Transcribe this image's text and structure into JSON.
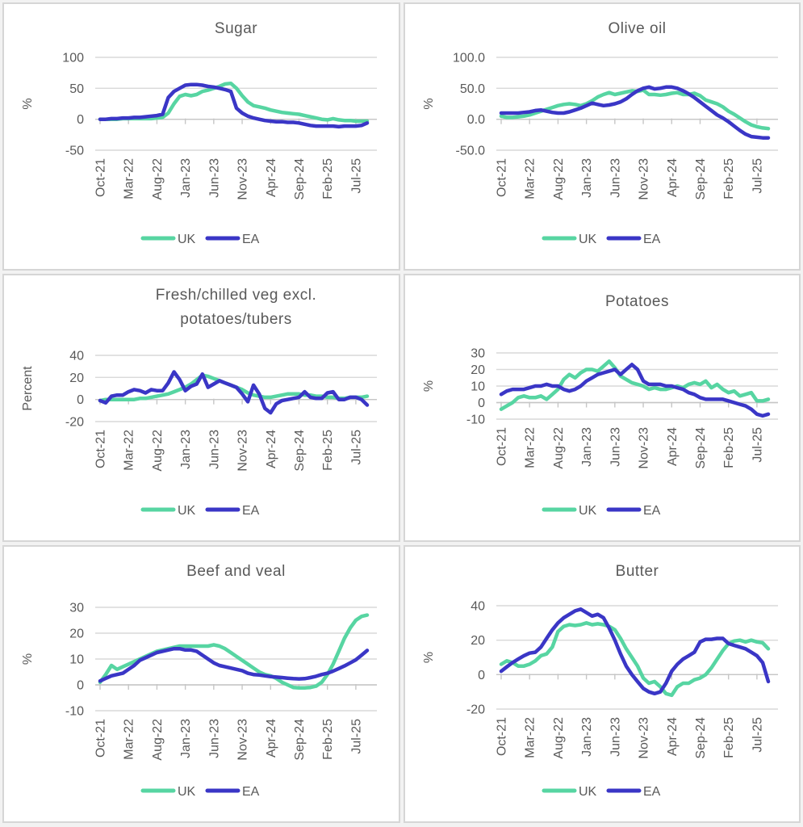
{
  "colors": {
    "uk": "#57d5a2",
    "ea": "#3a36c6",
    "grid": "#d9d9d9",
    "axis": "#c6c6c6",
    "text": "#595959",
    "panel_border": "#d6d6d6"
  },
  "legend": {
    "uk_label": "UK",
    "ea_label": "EA"
  },
  "x_tick_labels": [
    "Oct-21",
    "Mar-22",
    "Aug-22",
    "Jan-23",
    "Jun-23",
    "Nov-23",
    "Apr-24",
    "Sep-24",
    "Feb-25",
    "Jul-25"
  ],
  "x_categories": [
    "Oct-21",
    "Nov-21",
    "Dec-21",
    "Jan-22",
    "Feb-22",
    "Mar-22",
    "Apr-22",
    "May-22",
    "Jun-22",
    "Jul-22",
    "Aug-22",
    "Sep-22",
    "Oct-22",
    "Nov-22",
    "Dec-22",
    "Jan-23",
    "Feb-23",
    "Mar-23",
    "Apr-23",
    "May-23",
    "Jun-23",
    "Jul-23",
    "Aug-23",
    "Sep-23",
    "Oct-23",
    "Nov-23",
    "Dec-23",
    "Jan-24",
    "Feb-24",
    "Mar-24",
    "Apr-24",
    "May-24",
    "Jun-24",
    "Jul-24",
    "Aug-24",
    "Sep-24",
    "Oct-24",
    "Nov-24",
    "Dec-24",
    "Jan-25",
    "Feb-25",
    "Mar-25",
    "Apr-25",
    "May-25",
    "Jun-25",
    "Jul-25",
    "Aug-25",
    "Sep-25"
  ],
  "chart_data": [
    {
      "id": "sugar",
      "type": "line",
      "title_lines": [
        "Sugar"
      ],
      "ylabel": "%",
      "ytick_labels": [
        "100",
        "50",
        "0",
        "-50"
      ],
      "yticks": [
        100,
        50,
        0,
        -50
      ],
      "ylim": [
        -50,
        100
      ],
      "legend_position": "bottom",
      "series": [
        {
          "name": "UK",
          "color_key": "uk",
          "values": [
            0,
            0,
            0,
            0,
            1,
            1,
            1,
            1,
            1,
            1,
            2,
            3,
            10,
            25,
            37,
            40,
            38,
            40,
            45,
            47,
            50,
            53,
            57,
            58,
            50,
            38,
            28,
            22,
            20,
            18,
            15,
            13,
            11,
            10,
            9,
            8,
            6,
            4,
            2,
            0,
            -1,
            1,
            -1,
            -2,
            -2,
            -3,
            -3,
            -3
          ]
        },
        {
          "name": "EA",
          "color_key": "ea",
          "values": [
            0,
            0,
            1,
            1,
            2,
            2,
            3,
            3,
            4,
            5,
            6,
            8,
            35,
            45,
            50,
            55,
            56,
            56,
            55,
            53,
            52,
            50,
            48,
            45,
            18,
            10,
            5,
            2,
            0,
            -2,
            -3,
            -4,
            -4,
            -5,
            -5,
            -6,
            -8,
            -10,
            -11,
            -11,
            -11,
            -11,
            -12,
            -11,
            -11,
            -11,
            -10,
            -6
          ]
        }
      ]
    },
    {
      "id": "olive-oil",
      "type": "line",
      "title_lines": [
        "Olive oil"
      ],
      "ylabel": "%",
      "ytick_labels": [
        "100.0",
        "50.0",
        "0.0",
        "-50.0"
      ],
      "yticks": [
        100,
        50,
        0,
        -50
      ],
      "ylim": [
        -50,
        100
      ],
      "legend_position": "bottom",
      "series": [
        {
          "name": "UK",
          "color_key": "uk",
          "values": [
            5,
            3,
            3,
            4,
            5,
            7,
            10,
            13,
            16,
            19,
            22,
            24,
            25,
            24,
            22,
            25,
            30,
            36,
            40,
            43,
            40,
            42,
            44,
            46,
            45,
            47,
            40,
            40,
            39,
            40,
            42,
            43,
            40,
            40,
            42,
            38,
            31,
            28,
            25,
            20,
            13,
            8,
            2,
            -4,
            -9,
            -12,
            -14,
            -15
          ]
        },
        {
          "name": "EA",
          "color_key": "ea",
          "values": [
            10,
            10,
            10,
            10,
            11,
            12,
            14,
            15,
            13,
            11,
            10,
            10,
            12,
            15,
            18,
            22,
            26,
            24,
            22,
            23,
            25,
            28,
            33,
            40,
            46,
            50,
            52,
            49,
            50,
            52,
            52,
            50,
            46,
            41,
            35,
            28,
            21,
            14,
            7,
            2,
            -4,
            -11,
            -18,
            -24,
            -28,
            -29,
            -30,
            -30
          ]
        }
      ]
    },
    {
      "id": "veg",
      "type": "line",
      "title_lines": [
        "Fresh/chilled veg excl.",
        "potatoes/tubers"
      ],
      "ylabel": "Percent",
      "ytick_labels": [
        "40",
        "20",
        "0",
        "-20"
      ],
      "yticks": [
        40,
        20,
        0,
        -20
      ],
      "ylim": [
        -20,
        40
      ],
      "legend_position": "bottom",
      "series": [
        {
          "name": "UK",
          "color_key": "uk",
          "values": [
            -1,
            0,
            0,
            0,
            0,
            0,
            0,
            1,
            1,
            2,
            3,
            4,
            5,
            7,
            9,
            11,
            14,
            18,
            22,
            21,
            19,
            17,
            15,
            13,
            11,
            9,
            6,
            4,
            3,
            2,
            2,
            3,
            4,
            5,
            5,
            5,
            4,
            4,
            3,
            3,
            2,
            2,
            1,
            1,
            2,
            2,
            2,
            3
          ]
        },
        {
          "name": "EA",
          "color_key": "ea",
          "values": [
            -1,
            -3,
            3,
            4,
            4,
            7,
            9,
            8,
            6,
            9,
            8,
            8,
            15,
            25,
            18,
            8,
            12,
            14,
            23,
            11,
            14,
            17,
            15,
            13,
            11,
            5,
            -2,
            13,
            5,
            -8,
            -12,
            -4,
            -1,
            0,
            1,
            2,
            7,
            2,
            1,
            1,
            6,
            7,
            0,
            0,
            2,
            2,
            0,
            -5
          ]
        }
      ]
    },
    {
      "id": "potatoes",
      "type": "line",
      "title_lines": [
        "Potatoes"
      ],
      "ylabel": "%",
      "ytick_labels": [
        "30",
        "20",
        "10",
        "0",
        "-10"
      ],
      "yticks": [
        30,
        20,
        10,
        0,
        -10
      ],
      "ylim": [
        -10,
        30
      ],
      "legend_position": "bottom",
      "series": [
        {
          "name": "UK",
          "color_key": "uk",
          "values": [
            -4,
            -2,
            0,
            3,
            4,
            3,
            3,
            4,
            2,
            5,
            8,
            14,
            17,
            15,
            18,
            20,
            20,
            19,
            22,
            25,
            21,
            16,
            14,
            12,
            11,
            10,
            8,
            9,
            8,
            8,
            9,
            10,
            9,
            11,
            12,
            11,
            13,
            9,
            11,
            8,
            6,
            7,
            4,
            5,
            6,
            1,
            1,
            2
          ]
        },
        {
          "name": "EA",
          "color_key": "ea",
          "values": [
            5,
            7,
            8,
            8,
            8,
            9,
            10,
            10,
            11,
            10,
            10,
            8,
            7,
            8,
            10,
            13,
            15,
            17,
            18,
            19,
            20,
            17,
            20,
            23,
            20,
            13,
            11,
            11,
            11,
            10,
            10,
            9,
            8,
            6,
            5,
            3,
            2,
            2,
            2,
            2,
            1,
            0,
            -1,
            -2,
            -4,
            -7,
            -8,
            -7
          ]
        }
      ]
    },
    {
      "id": "beef-and-veal",
      "type": "line",
      "title_lines": [
        "Beef and veal"
      ],
      "ylabel": "%",
      "ytick_labels": [
        "30",
        "20",
        "10",
        "0",
        "-10"
      ],
      "yticks": [
        30,
        20,
        10,
        0,
        -10
      ],
      "ylim": [
        -10,
        30
      ],
      "legend_position": "bottom",
      "series": [
        {
          "name": "UK",
          "color_key": "uk",
          "values": [
            1,
            4,
            7.5,
            6,
            7,
            8,
            9,
            10,
            11,
            12,
            13,
            13.5,
            14,
            14.5,
            15,
            15,
            15,
            15,
            15,
            15,
            15.5,
            15,
            14,
            12.5,
            11,
            9.5,
            8,
            6.5,
            5,
            4,
            3.5,
            2.5,
            1,
            0,
            -1,
            -1.2,
            -1.2,
            -1,
            -0.5,
            1,
            4,
            8,
            13,
            18,
            22,
            25,
            26.5,
            27
          ]
        },
        {
          "name": "EA",
          "color_key": "ea",
          "values": [
            1.5,
            2.5,
            3.5,
            4,
            4.5,
            6,
            7.5,
            9.5,
            10.5,
            11.5,
            12.5,
            13,
            13.5,
            14,
            14,
            13.5,
            13.5,
            13,
            11.5,
            10,
            8.5,
            7.5,
            7,
            6.5,
            6,
            5.5,
            4.5,
            4,
            3.8,
            3.5,
            3.2,
            3,
            2.8,
            2.6,
            2.4,
            2.3,
            2.4,
            2.8,
            3.3,
            4,
            4.5,
            5.3,
            6.3,
            7.3,
            8.5,
            9.7,
            11.5,
            13.3
          ]
        }
      ]
    },
    {
      "id": "butter",
      "type": "line",
      "title_lines": [
        "Butter"
      ],
      "ylabel": "%",
      "ytick_labels": [
        "40",
        "20",
        "0",
        "-20"
      ],
      "yticks": [
        40,
        20,
        0,
        -20
      ],
      "ylim": [
        -20,
        40
      ],
      "legend_position": "bottom",
      "series": [
        {
          "name": "UK",
          "color_key": "uk",
          "values": [
            6,
            8,
            7,
            5,
            5,
            6,
            8,
            11,
            12,
            16,
            25,
            28,
            29,
            28.5,
            29,
            30,
            29,
            29.5,
            29,
            28,
            26,
            21,
            15,
            10,
            5,
            -2,
            -5,
            -4,
            -7,
            -11,
            -12,
            -7,
            -5,
            -5,
            -3,
            -2,
            0,
            4,
            9,
            14,
            18,
            19.5,
            20,
            19,
            20,
            19,
            18.5,
            15
          ]
        },
        {
          "name": "EA",
          "color_key": "ea",
          "values": [
            2,
            4.5,
            7,
            9,
            11,
            12.5,
            13,
            16,
            21,
            26,
            30,
            33,
            35,
            37,
            38,
            36,
            34,
            35,
            33,
            27,
            20,
            12,
            5,
            0,
            -4,
            -8,
            -10,
            -11,
            -10,
            -5,
            2,
            6,
            9,
            11,
            13,
            19,
            20.5,
            20.5,
            21,
            21,
            18,
            17,
            16,
            15,
            13,
            11,
            7,
            -4
          ]
        }
      ]
    }
  ]
}
